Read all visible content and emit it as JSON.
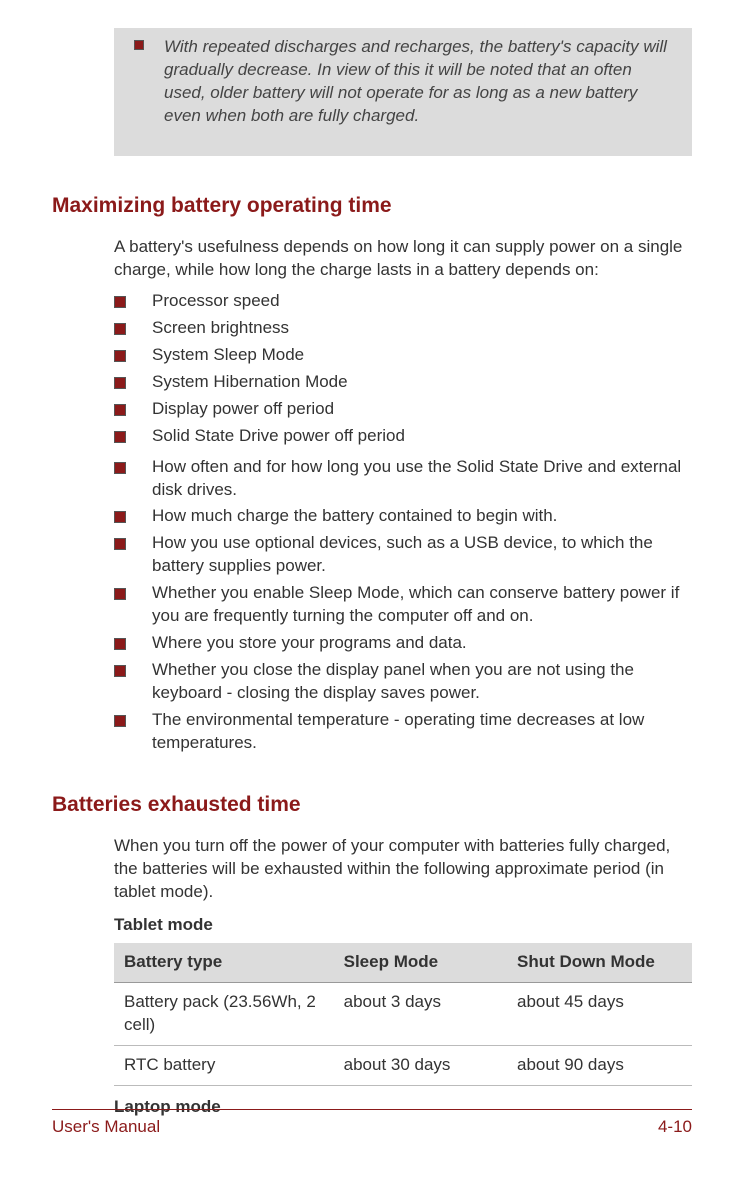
{
  "colors": {
    "accent": "#8b1a1a",
    "note_bg": "#dcdcdc",
    "text": "#333333",
    "border": "#bbbbbb"
  },
  "note": {
    "text": "With repeated discharges and recharges, the battery's capacity will gradually decrease. In view of this it will be noted that an often used, older battery will not operate for as long as a new battery even when both are fully charged."
  },
  "section1": {
    "heading": "Maximizing battery operating time",
    "intro": "A battery's usefulness depends on how long it can supply power on a single charge, while how long the charge lasts in a battery depends on:",
    "list_a": [
      "Processor speed",
      "Screen brightness",
      "System Sleep Mode",
      "System Hibernation Mode",
      "Display power off period",
      "Solid State Drive power off period"
    ],
    "list_b": [
      "How often and for how long you use the Solid State Drive and external disk drives.",
      "How much charge the battery contained to begin with.",
      "How you use optional devices, such as a USB device, to which the battery supplies power.",
      "Whether you enable Sleep Mode, which can conserve battery power if you are frequently turning the computer off and on.",
      "Where you store your programs and data.",
      "Whether you close the display panel when you are not using the keyboard - closing the display saves power.",
      "The environmental temperature - operating time decreases at low temperatures."
    ]
  },
  "section2": {
    "heading": "Batteries exhausted time",
    "intro": "When you turn off the power of your computer with batteries fully charged, the batteries will be exhausted within the following approximate period (in tablet mode).",
    "tablet_label": "Tablet mode",
    "table": {
      "headers": [
        "Battery type",
        "Sleep Mode",
        "Shut Down Mode"
      ],
      "rows": [
        [
          "Battery pack (23.56Wh, 2 cell)",
          "about 3 days",
          "about 45 days"
        ],
        [
          "RTC battery",
          "about 30 days",
          "about 90 days"
        ]
      ]
    },
    "laptop_label": "Laptop mode"
  },
  "footer": {
    "left": "User's Manual",
    "right": "4-10"
  }
}
